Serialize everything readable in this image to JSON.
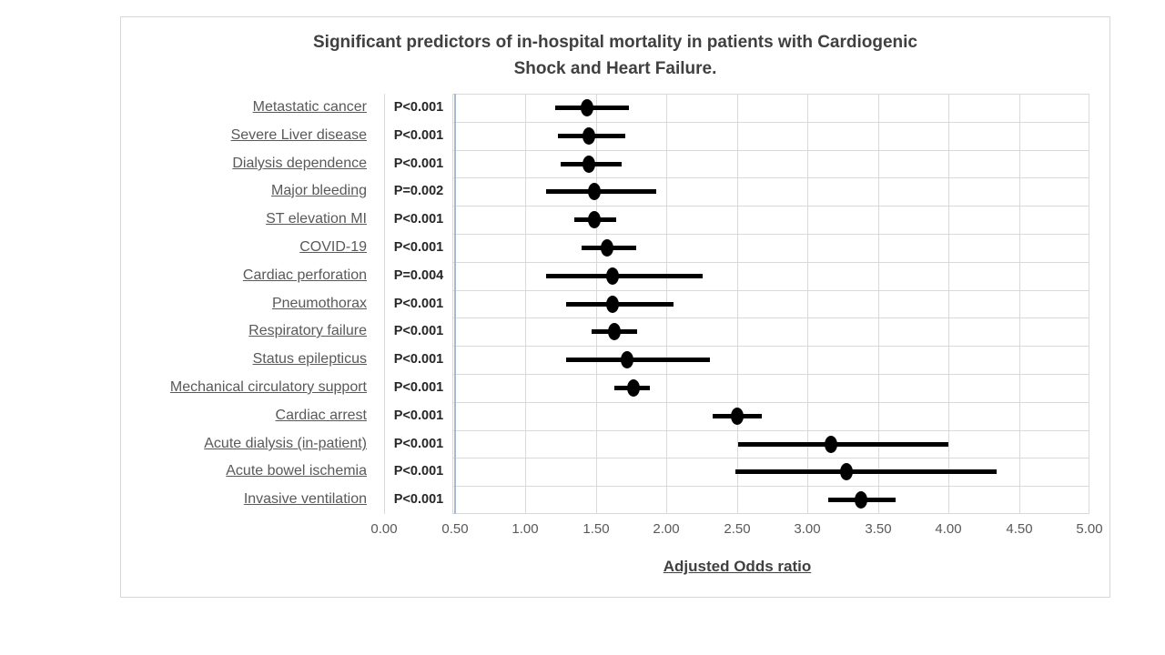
{
  "figure": {
    "title_line1": "Significant predictors of in-hospital mortality in patients with Cardiogenic",
    "title_line2": "Shock and Heart Failure."
  },
  "chart_data": {
    "type": "scatter",
    "subtype": "forest-plot",
    "title": "Significant predictors of in-hospital mortality in patients with Cardiogenic Shock and Heart Failure.",
    "xlabel": "Adjusted Odds ratio",
    "xlim": [
      0,
      5
    ],
    "xtick_step": 0.5,
    "xtick_labels": [
      "0.00",
      "0.50",
      "1.00",
      "1.50",
      "2.00",
      "2.50",
      "3.00",
      "3.50",
      "4.00",
      "4.50",
      "5.00"
    ],
    "grid": true,
    "legend": "none",
    "vertical_axis_line_at": 0.5,
    "rows": [
      {
        "label": "Metastatic cancer",
        "p": "P<0.001",
        "or": 1.44,
        "ci": [
          1.21,
          1.73
        ]
      },
      {
        "label": "Severe Liver disease",
        "p": "P<0.001",
        "or": 1.45,
        "ci": [
          1.23,
          1.71
        ]
      },
      {
        "label": "Dialysis dependence",
        "p": "P<0.001",
        "or": 1.45,
        "ci": [
          1.25,
          1.68
        ]
      },
      {
        "label": "Major bleeding",
        "p": "P=0.002",
        "or": 1.49,
        "ci": [
          1.15,
          1.93
        ]
      },
      {
        "label": "ST elevation MI",
        "p": "P<0.001",
        "or": 1.49,
        "ci": [
          1.35,
          1.65
        ]
      },
      {
        "label": "COVID-19",
        "p": "P<0.001",
        "or": 1.58,
        "ci": [
          1.4,
          1.79
        ]
      },
      {
        "label": "Cardiac perforation",
        "p": "P=0.004",
        "or": 1.62,
        "ci": [
          1.15,
          2.26
        ]
      },
      {
        "label": "Pneumothorax",
        "p": "P<0.001",
        "or": 1.62,
        "ci": [
          1.29,
          2.05
        ]
      },
      {
        "label": "Respiratory failure",
        "p": "P<0.001",
        "or": 1.63,
        "ci": [
          1.47,
          1.79
        ]
      },
      {
        "label": "Status epilepticus",
        "p": "P<0.001",
        "or": 1.72,
        "ci": [
          1.29,
          2.31
        ]
      },
      {
        "label": "Mechanical circulatory support",
        "p": "P<0.001",
        "or": 1.77,
        "ci": [
          1.63,
          1.88
        ]
      },
      {
        "label": "Cardiac arrest",
        "p": "P<0.001",
        "or": 2.5,
        "ci": [
          2.33,
          2.68
        ]
      },
      {
        "label": "Acute dialysis (in-patient)",
        "p": "P<0.001",
        "or": 3.17,
        "ci": [
          2.51,
          4.0
        ]
      },
      {
        "label": "Acute bowel ischemia",
        "p": "P<0.001",
        "or": 3.28,
        "ci": [
          2.49,
          4.34
        ]
      },
      {
        "label": "Invasive ventilation",
        "p": "P<0.001",
        "or": 3.38,
        "ci": [
          3.15,
          3.63
        ]
      }
    ]
  },
  "colors": {
    "figure_border": "#d6d6d6",
    "grid": "#d9d9d9",
    "axis_line": "#a7b9d4",
    "marker": "#000000",
    "title_text": "#404040",
    "label_text": "#595959",
    "p_text": "#262626"
  }
}
